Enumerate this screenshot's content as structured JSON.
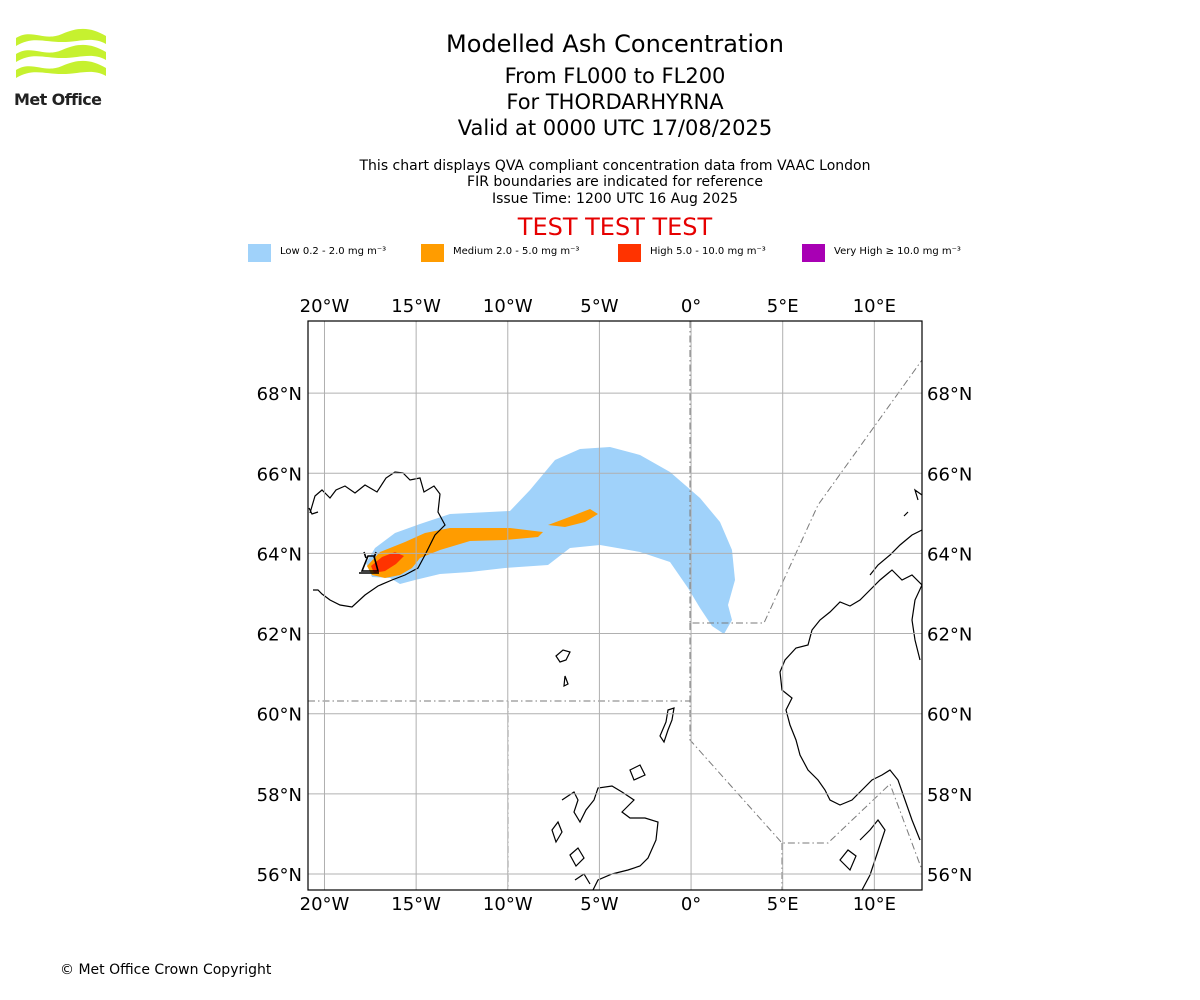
{
  "logo": {
    "name": "Met Office",
    "colors": [
      "#c6f12f",
      "#b5e41f"
    ]
  },
  "header": {
    "title": "Modelled Ash Concentration",
    "flight_levels": "From FL000 to FL200",
    "volcano": "For THORDARHYRNA",
    "valid_time": "Valid at 0000 UTC 17/08/2025",
    "info_line1": "This chart displays QVA compliant concentration data from VAAC London",
    "info_line2": "FIR boundaries are indicated for reference",
    "issue_time": "Issue Time: 1200 UTC 16 Aug 2025",
    "test_banner": "TEST TEST TEST"
  },
  "legend": [
    {
      "label": "Low 0.2 - 2.0 mg m⁻³",
      "color": "#a0d2fa"
    },
    {
      "label": "Medium 2.0 - 5.0 mg m⁻³",
      "color": "#ff9c00"
    },
    {
      "label": "High 5.0 - 10.0 mg m⁻³",
      "color": "#ff3300"
    },
    {
      "label": "Very High  ≥  10.0 mg m⁻³",
      "color": "#a800b4"
    }
  ],
  "map": {
    "extent": {
      "lon": [
        -20.9,
        12.6
      ],
      "lat": [
        55.6,
        69.8
      ]
    },
    "lon_ticks": [
      {
        "value": -20,
        "label": "20°W"
      },
      {
        "value": -15,
        "label": "15°W"
      },
      {
        "value": -10,
        "label": "10°W"
      },
      {
        "value": -5,
        "label": "5°W"
      },
      {
        "value": 0,
        "label": "0°"
      },
      {
        "value": 5,
        "label": "5°E"
      },
      {
        "value": 10,
        "label": "10°E"
      }
    ],
    "lat_ticks": [
      {
        "value": 56,
        "label": "56°N"
      },
      {
        "value": 58,
        "label": "58°N"
      },
      {
        "value": 60,
        "label": "60°N"
      },
      {
        "value": 62,
        "label": "62°N"
      },
      {
        "value": 64,
        "label": "64°N"
      },
      {
        "value": 66,
        "label": "66°N"
      },
      {
        "value": 68,
        "label": "68°N"
      }
    ],
    "gridlines": true,
    "volcano_icon": "volcano-icon",
    "volcano_location": {
      "lon": -17.5,
      "lat": 64.4
    },
    "colors": {
      "grid": "#b0b0b0",
      "fir": "#7a7a7a",
      "coast": "#000000"
    }
  },
  "footer": {
    "copyright": "© Met Office Crown Copyright"
  }
}
